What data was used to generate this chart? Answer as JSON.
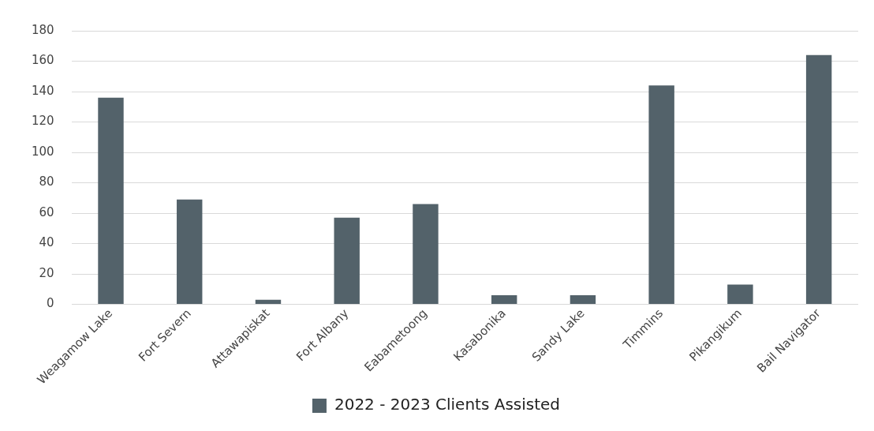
{
  "chart_data": {
    "type": "bar",
    "categories": [
      "Weagamow Lake",
      "Fort Severn",
      "Attawapiskat",
      "Fort Albany",
      "Eabametoong",
      "Kasabonika",
      "Sandy Lake",
      "Timmins",
      "Pikangikum",
      "Bail Navigator"
    ],
    "series": [
      {
        "name": "2022 - 2023 Clients Assisted",
        "color": "#53626a",
        "values": [
          136,
          69,
          3,
          57,
          66,
          6,
          6,
          144,
          13,
          164
        ]
      }
    ],
    "ylim": [
      0,
      180
    ],
    "yticks": [
      0,
      20,
      40,
      60,
      80,
      100,
      120,
      140,
      160,
      180
    ],
    "grid": "y",
    "legend": "bottom"
  }
}
